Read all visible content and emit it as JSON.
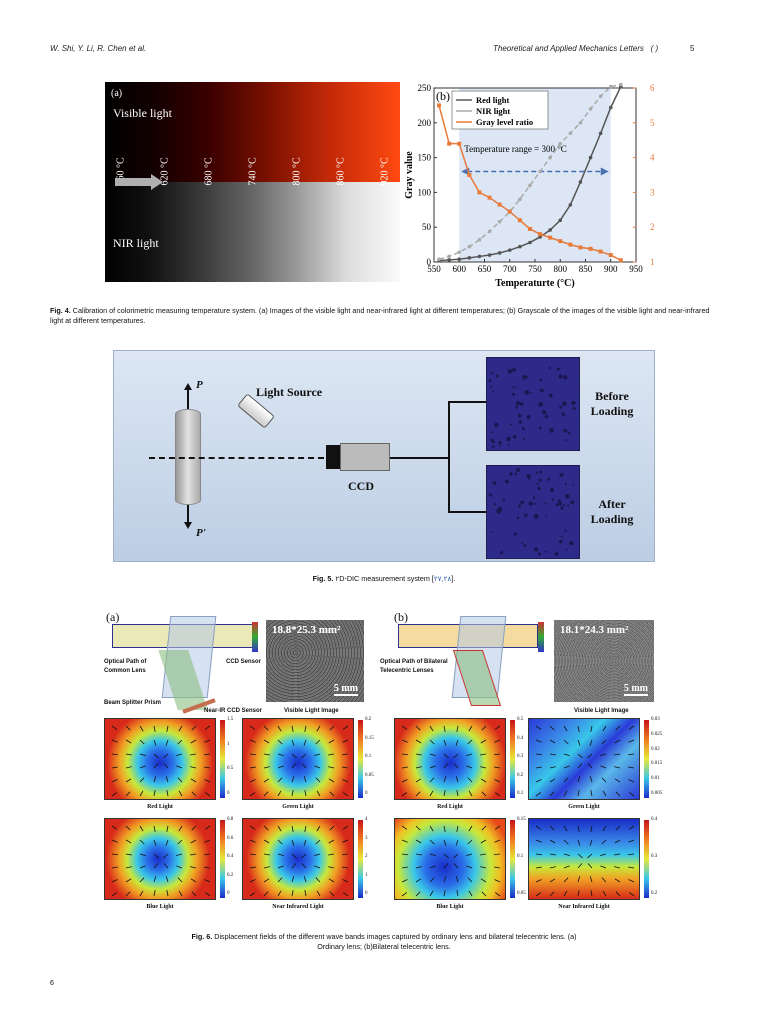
{
  "header": {
    "authors": "W. Shi, Y. Li, R. Chen et al.",
    "journal": "Theoretical and Applied Mechanics Letters",
    "volume": "( )",
    "page": "5"
  },
  "fig4": {
    "panel_a": {
      "tag": "(a)",
      "visible_label": "Visible light",
      "nir_label": "NIR light",
      "temperatures": [
        "560 °C",
        "620 °C",
        "680 °C",
        "740 °C",
        "800 °C",
        "860 °C",
        "920 °C"
      ]
    },
    "caption_label": "Fig. 4.",
    "caption_text": "Calibration of colorimetric measuring temperature system. (a) Images of the visible light and near-infrared light at different temperatures; (b) Grayscale of the images of the visible light and near-infrared light at different temperatures."
  },
  "chart_data": {
    "type": "line",
    "panel_tag": "(b)",
    "title": "",
    "xlabel": "Temperaturte (°C)",
    "ylabel": "Gray value",
    "xlim": [
      550,
      950
    ],
    "ylim": [
      0,
      250
    ],
    "y2lim": [
      1,
      6
    ],
    "xticks": [
      550,
      600,
      650,
      700,
      750,
      800,
      850,
      900,
      950
    ],
    "yticks": [
      0,
      50,
      100,
      150,
      200,
      250
    ],
    "y2ticks": [
      1,
      2,
      3,
      4,
      5,
      6
    ],
    "annotation": "Temperature range = 300 °C",
    "annotation_range": [
      600,
      900
    ],
    "series": [
      {
        "name": "Red light",
        "axis": "left",
        "color": "#555555",
        "x": [
          560,
          580,
          600,
          620,
          640,
          660,
          680,
          700,
          720,
          740,
          760,
          780,
          800,
          820,
          840,
          860,
          880,
          900,
          920
        ],
        "y": [
          2,
          3,
          4,
          6,
          8,
          10,
          13,
          17,
          22,
          28,
          36,
          46,
          60,
          82,
          115,
          150,
          185,
          222,
          252
        ]
      },
      {
        "name": "NIR light",
        "axis": "left",
        "color": "#aaaaaa",
        "x": [
          560,
          580,
          600,
          620,
          640,
          660,
          680,
          700,
          720,
          740,
          760,
          780,
          800,
          820,
          840,
          860,
          880,
          900,
          920
        ],
        "y": [
          4,
          8,
          14,
          22,
          32,
          44,
          58,
          72,
          90,
          110,
          130,
          150,
          170,
          185,
          200,
          220,
          238,
          252,
          255
        ]
      },
      {
        "name": "Gray level ratio",
        "axis": "right",
        "color": "#e87a3a",
        "x": [
          560,
          580,
          600,
          620,
          640,
          660,
          680,
          700,
          720,
          740,
          760,
          780,
          800,
          820,
          840,
          860,
          880,
          900,
          920
        ],
        "y": [
          5.5,
          4.4,
          4.4,
          3.5,
          3.0,
          2.85,
          2.65,
          2.45,
          2.2,
          1.95,
          1.8,
          1.7,
          1.6,
          1.5,
          1.42,
          1.38,
          1.3,
          1.2,
          1.05
        ]
      }
    ],
    "legend_position": "top-left"
  },
  "fig5": {
    "force_top": "P",
    "force_bottom": "P'",
    "light_source": "Light Source",
    "ccd": "CCD",
    "before_1": "Before",
    "before_2": "Loading",
    "after_1": "After",
    "after_2": "Loading",
    "caption_label": "Fig. 5.",
    "caption_text": "۲D-DIC measurement system [",
    "caption_refs": "۲۷,۲۸",
    "caption_end": "]."
  },
  "fig6": {
    "panel_a": {
      "tag": "(a)",
      "field_size": "18.8*25.3 mm²",
      "scale": "5 mm",
      "optical_path_1": "Optical Path of",
      "optical_path_2": "Common Lens",
      "ccd_sensor": "CCD Sensor",
      "beam_splitter": "Beam Splitter Prism",
      "nir_ccd": "Near-IR CCD Sensor",
      "visible_image": "Visible Light Image",
      "red": "Red Light",
      "green": "Green Light",
      "blue": "Blue Light",
      "nir": "Near Infrared Light",
      "cbar_red": [
        "1.5",
        "1",
        "0.5",
        "0"
      ],
      "cbar_green": [
        "0.2",
        "0.15",
        "0.1",
        "0.05",
        "0"
      ],
      "cbar_blue": [
        "0.8",
        "0.6",
        "0.4",
        "0.2",
        "0"
      ],
      "cbar_nir": [
        "4",
        "3",
        "2",
        "1",
        "0"
      ]
    },
    "panel_b": {
      "tag": "(b)",
      "field_size": "18.1*24.3 mm²",
      "scale": "5 mm",
      "optical_path_1": "Optical Path of Bilateral",
      "optical_path_2": "Telecentric Lenses",
      "visible_image": "Visible Light Image",
      "red": "Red Light",
      "green": "Green Light",
      "blue": "Blue Light",
      "nir": "Near Infrared Light",
      "cbar_red": [
        "0.5",
        "0.4",
        "0.3",
        "0.2",
        "0.1"
      ],
      "cbar_green": [
        "0.03",
        "0.025",
        "0.02",
        "0.015",
        "0.01",
        "0.005"
      ],
      "cbar_blue": [
        "0.15",
        "0.1",
        "0.05"
      ],
      "cbar_nir": [
        "0.4",
        "0.3",
        "0.2"
      ]
    },
    "caption_label": "Fig. 6.",
    "caption_text_1": "Displacement fields of the different wave bands images captured by ordinary lens and bilateral telecentric lens. (a)",
    "caption_text_2": "Ordinary lens; (b)Bilateral telecentric lens."
  },
  "footer": {
    "page_number": "6"
  },
  "colors": {
    "fig5_bg": "#c6d6ea",
    "speckle": "#2e2a8a",
    "orange": "#e87a3a",
    "ref_link": "#2a5db0"
  }
}
